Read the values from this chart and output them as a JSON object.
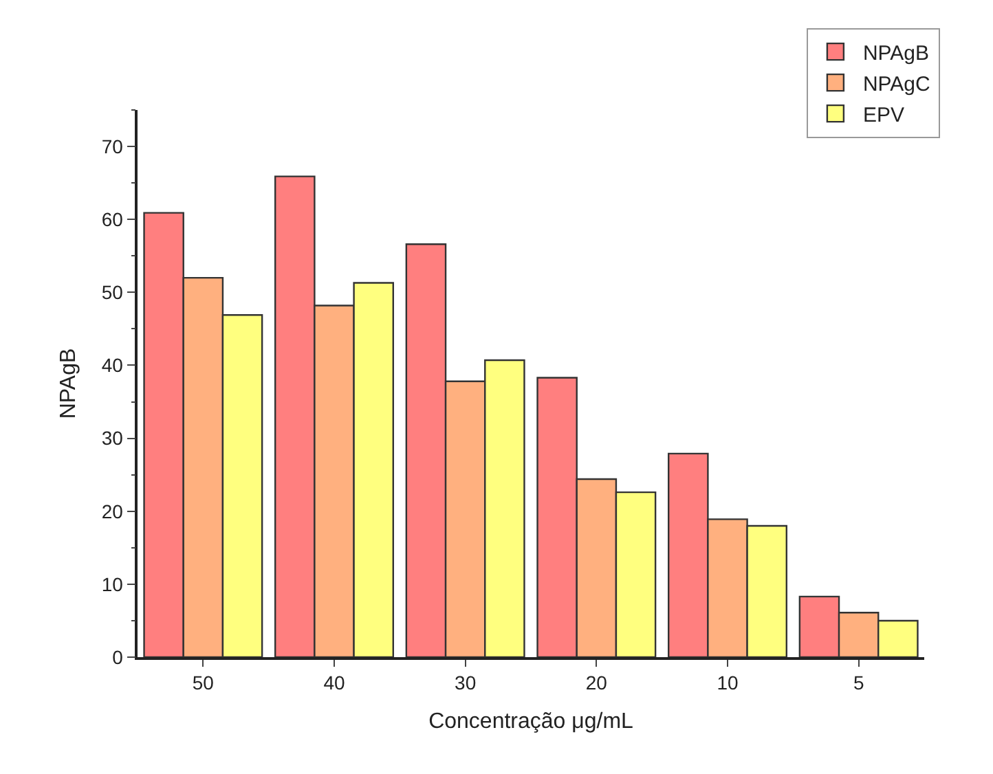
{
  "chart_data": {
    "type": "bar",
    "xlabel": "Concentração μg/mL",
    "ylabel": "NPAgB",
    "categories": [
      "50",
      "40",
      "30",
      "20",
      "10",
      "5"
    ],
    "series": [
      {
        "name": "NPAgB",
        "color": "#ff7f7f",
        "values": [
          60.9,
          65.9,
          56.6,
          38.3,
          27.9,
          8.3
        ]
      },
      {
        "name": "NPAgC",
        "color": "#ffb07f",
        "values": [
          52.0,
          48.2,
          37.8,
          24.4,
          18.9,
          6.1
        ]
      },
      {
        "name": "EPV",
        "color": "#ffff7f",
        "values": [
          46.9,
          51.3,
          40.7,
          22.6,
          18.0,
          5.0
        ]
      }
    ],
    "ylim": [
      0,
      75
    ],
    "yticks": [
      0,
      10,
      20,
      30,
      40,
      50,
      60,
      70
    ],
    "legend": "top right"
  }
}
